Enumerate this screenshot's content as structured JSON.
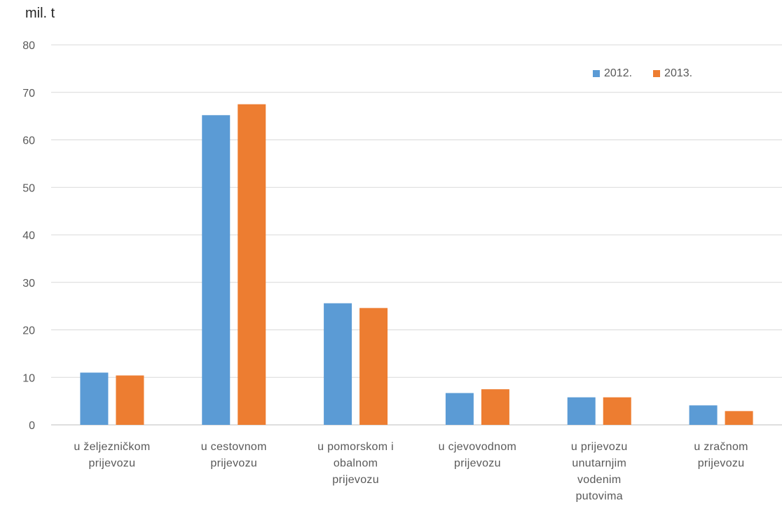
{
  "chart_data": {
    "type": "bar",
    "unit_label": "mil. t",
    "categories": [
      [
        "u željezničkom",
        "prijevozu"
      ],
      [
        "u cestovnom",
        "prijevozu"
      ],
      [
        "u pomorskom i",
        "obalnom",
        "prijevozu"
      ],
      [
        "u cjevovodnom",
        "prijevozu"
      ],
      [
        "u prijevozu",
        "unutarnjim",
        "vodenim",
        "putovima"
      ],
      [
        "u zračnom",
        "prijevozu"
      ]
    ],
    "series": [
      {
        "name": "2012.",
        "color": "#5b9bd5",
        "values": [
          11.0,
          65.2,
          25.6,
          6.7,
          5.8,
          4.1
        ]
      },
      {
        "name": "2013.",
        "color": "#ed7d31",
        "values": [
          10.4,
          67.5,
          24.6,
          7.5,
          5.8,
          2.9
        ]
      }
    ],
    "ylim": [
      0,
      80
    ],
    "yticks": [
      0,
      10,
      20,
      30,
      40,
      50,
      60,
      70,
      80
    ],
    "grid": true,
    "legend_position": "top-right"
  }
}
